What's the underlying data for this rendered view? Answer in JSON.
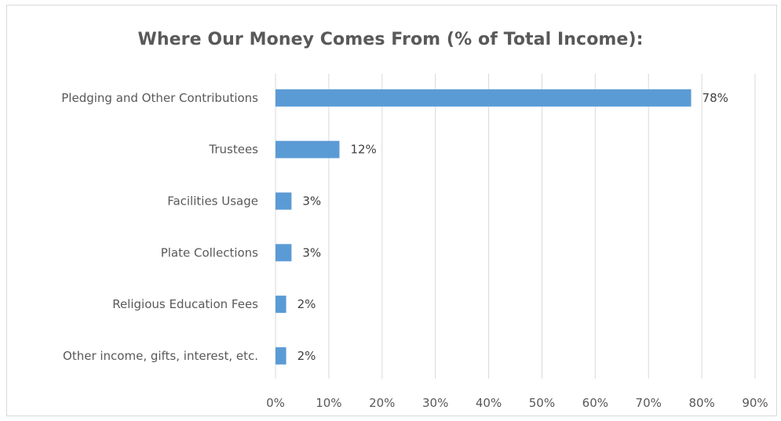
{
  "chart_data": {
    "type": "bar",
    "orientation": "horizontal",
    "title": "Where Our Money Comes From (% of Total Income):",
    "categories": [
      "Pledging and Other Contributions",
      "Trustees",
      "Facilities Usage",
      "Plate Collections",
      "Religious Education Fees",
      "Other income, gifts, interest, etc."
    ],
    "values": [
      78,
      12,
      3,
      3,
      2,
      2
    ],
    "data_labels": [
      "78%",
      "12%",
      "3%",
      "3%",
      "2%",
      "2%"
    ],
    "x_ticks": [
      "0%",
      "10%",
      "20%",
      "30%",
      "40%",
      "50%",
      "60%",
      "70%",
      "80%",
      "90%"
    ],
    "xlim": [
      0,
      90
    ],
    "grid": "vertical",
    "legend": "none",
    "bar_color": "#5b9bd5",
    "grid_color": "#d9d9d9"
  }
}
